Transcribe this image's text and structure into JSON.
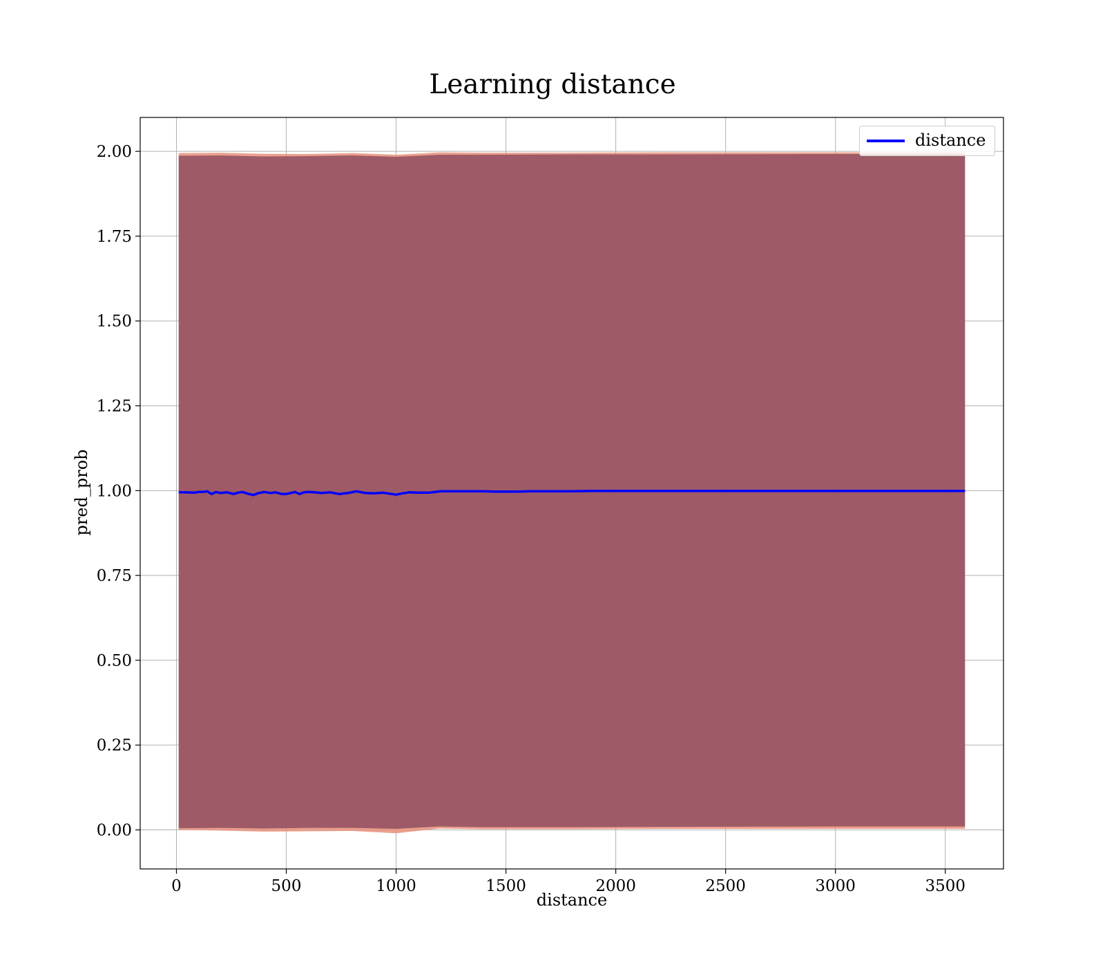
{
  "chart_data": {
    "type": "line",
    "title": "Learning distance",
    "xlabel": "distance",
    "ylabel": "pred_prob",
    "xlim": [
      -165,
      3765
    ],
    "ylim": [
      -0.115,
      2.1
    ],
    "xticks": [
      0,
      500,
      1000,
      1500,
      2000,
      2500,
      3000,
      3500
    ],
    "xtick_labels": [
      "0",
      "500",
      "1000",
      "1500",
      "2000",
      "2500",
      "3000",
      "3500"
    ],
    "yticks": [
      0.0,
      0.25,
      0.5,
      0.75,
      1.0,
      1.25,
      1.5,
      1.75,
      2.0
    ],
    "ytick_labels": [
      "0.00",
      "0.25",
      "0.50",
      "0.75",
      "1.00",
      "1.25",
      "1.50",
      "1.75",
      "2.00"
    ],
    "grid": true,
    "legend_position": "top-right",
    "series": [
      {
        "name": "distance",
        "color": "#0000ff",
        "x": [
          10,
          40,
          80,
          100,
          120,
          140,
          160,
          180,
          200,
          230,
          260,
          280,
          300,
          330,
          350,
          370,
          400,
          430,
          450,
          480,
          500,
          520,
          540,
          560,
          580,
          600,
          630,
          660,
          700,
          740,
          780,
          820,
          860,
          900,
          940,
          980,
          1000,
          1030,
          1060,
          1100,
          1150,
          1200,
          1250,
          1300,
          1400,
          1450,
          1500,
          1550,
          1600,
          1700,
          1800,
          1900,
          2000,
          2200,
          2400,
          2600,
          2800,
          3000,
          3200,
          3400,
          3590
        ],
        "y": [
          0.995,
          0.995,
          0.994,
          0.996,
          0.996,
          0.998,
          0.99,
          0.996,
          0.993,
          0.995,
          0.99,
          0.994,
          0.996,
          0.99,
          0.987,
          0.992,
          0.996,
          0.993,
          0.995,
          0.99,
          0.99,
          0.993,
          0.996,
          0.99,
          0.995,
          0.996,
          0.995,
          0.993,
          0.995,
          0.99,
          0.993,
          0.998,
          0.993,
          0.992,
          0.994,
          0.99,
          0.988,
          0.992,
          0.995,
          0.994,
          0.994,
          0.998,
          0.998,
          0.998,
          0.998,
          0.997,
          0.997,
          0.997,
          0.998,
          0.998,
          0.998,
          0.999,
          0.999,
          0.999,
          0.999,
          0.999,
          0.999,
          0.999,
          0.999,
          0.999,
          0.999
        ]
      }
    ],
    "bands": [
      {
        "color": "#e8907a",
        "opacity": 0.85,
        "x": [
          10,
          200,
          400,
          600,
          800,
          1000,
          1200,
          1400,
          1800,
          2200,
          3000,
          3590
        ],
        "lower": [
          0.0,
          -0.002,
          -0.005,
          -0.004,
          -0.003,
          -0.01,
          0.004,
          0.002,
          0.002,
          0.003,
          0.003,
          0.003
        ],
        "upper": [
          1.995,
          1.996,
          1.993,
          1.992,
          1.995,
          1.99,
          1.997,
          1.996,
          1.996,
          1.997,
          1.997,
          1.997
        ]
      },
      {
        "color": "#8b4a5e",
        "opacity": 0.8,
        "x": [
          10,
          200,
          400,
          600,
          800,
          1000,
          1200,
          1400,
          1800,
          2200,
          3000,
          3590
        ],
        "lower": [
          0.005,
          0.006,
          0.004,
          0.006,
          0.006,
          0.003,
          0.01,
          0.008,
          0.008,
          0.009,
          0.01,
          0.01
        ],
        "upper": [
          1.987,
          1.988,
          1.985,
          1.986,
          1.988,
          1.984,
          1.99,
          1.99,
          1.991,
          1.991,
          1.992,
          1.992
        ]
      }
    ]
  }
}
